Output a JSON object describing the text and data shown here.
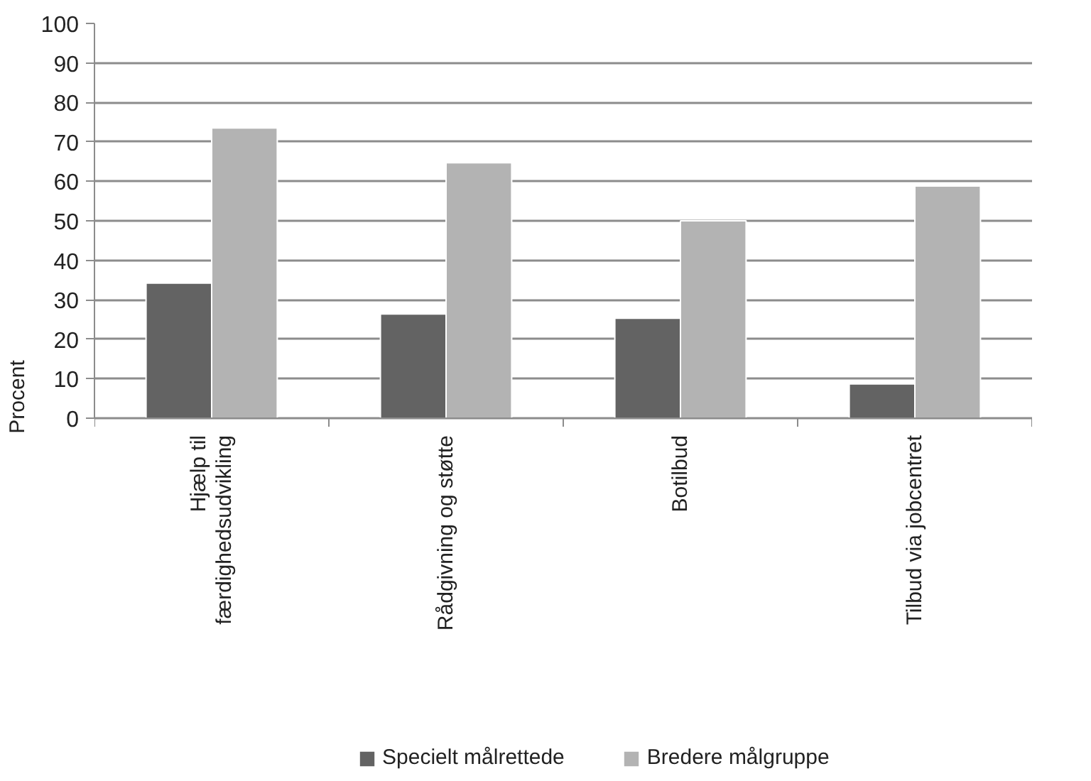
{
  "chart_data": {
    "type": "bar",
    "ylabel": "Procent",
    "categories": [
      "Hjælp til færdighedsudvikling",
      "Rådgivning og støtte",
      "Botilbud",
      "Tilbud via jobcentret"
    ],
    "series": [
      {
        "name": "Specielt målrettede",
        "color": "#636363",
        "values": [
          34.2,
          26.4,
          25.3,
          8.7
        ]
      },
      {
        "name": "Bredere målgruppe",
        "color": "#b3b3b3",
        "values": [
          73.5,
          64.7,
          50.0,
          58.8
        ]
      }
    ],
    "ylim": [
      0,
      100
    ],
    "yticks": [
      0,
      10,
      20,
      30,
      40,
      50,
      60,
      70,
      80,
      90,
      100
    ],
    "grid": "y",
    "legend": "bottom"
  }
}
